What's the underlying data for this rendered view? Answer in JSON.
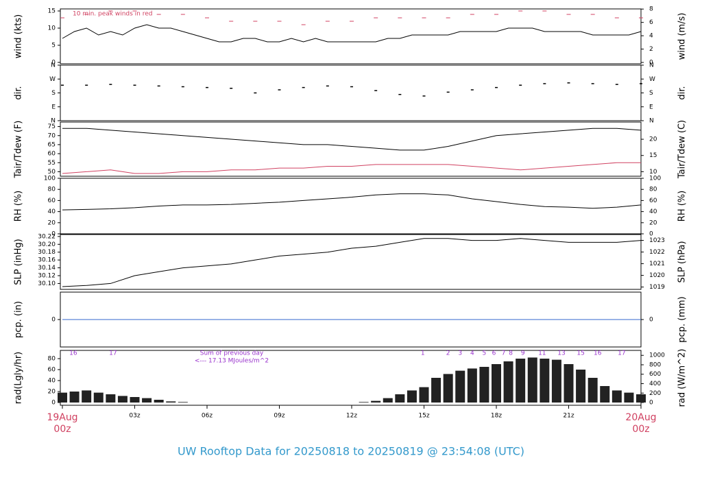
{
  "title": "UW Rooftop Data for 20250818  to  20250819 @ 23:54:08  (UTC)",
  "chart_data": [
    {
      "type": "line",
      "ylabel": "wind (kts)",
      "y2label": "wind (m/s)",
      "annotation": "10 min. peak winds in red",
      "xlim": [
        0,
        24
      ],
      "ylim": [
        -0.4,
        15.6
      ],
      "yticks": [
        0,
        5,
        10,
        15
      ],
      "y2lim": [
        -0.2,
        8.02
      ],
      "y2ticks": [
        0,
        2,
        4,
        6,
        8
      ],
      "series": [
        {
          "type": "line",
          "color": "#000000",
          "x": [
            0,
            0.5,
            1,
            1.5,
            2,
            2.5,
            3,
            3.5,
            4,
            4.5,
            5,
            5.5,
            6,
            6.5,
            7,
            7.5,
            8,
            8.5,
            9,
            9.5,
            10,
            10.5,
            11,
            11.5,
            12,
            12.5,
            13,
            13.5,
            14,
            14.5,
            15,
            15.5,
            16,
            16.5,
            17,
            17.5,
            18,
            18.5,
            19,
            19.5,
            20,
            20.5,
            21,
            21.5,
            22,
            22.5,
            23,
            23.5,
            24
          ],
          "values": [
            7,
            9,
            10,
            8,
            9,
            8,
            10,
            11,
            10,
            10,
            9,
            8,
            7,
            6,
            6,
            7,
            7,
            6,
            6,
            7,
            6,
            7,
            6,
            6,
            6,
            6,
            6,
            7,
            7,
            8,
            8,
            8,
            8,
            9,
            9,
            9,
            9,
            10,
            10,
            10,
            9,
            9,
            9,
            9,
            8,
            8,
            8,
            8,
            9
          ]
        },
        {
          "type": "dash",
          "color": "#d04060",
          "x": [
            0,
            1,
            2,
            3,
            4,
            5,
            6,
            7,
            8,
            9,
            10,
            11,
            12,
            13,
            14,
            15,
            16,
            17,
            18,
            19,
            20,
            21,
            22,
            23,
            24
          ],
          "values": [
            13,
            14,
            15,
            15,
            14,
            14,
            13,
            12,
            12,
            12,
            11,
            12,
            12,
            13,
            13,
            13,
            13,
            14,
            14,
            15,
            15,
            14,
            14,
            13,
            13
          ]
        }
      ]
    },
    {
      "type": "line",
      "ylabel": "dir.",
      "y2label": "dir.",
      "xlim": [
        0,
        24
      ],
      "ylim": [
        0,
        360
      ],
      "yticks": [
        {
          "value": 0,
          "label": "N"
        },
        {
          "value": 90,
          "label": "E"
        },
        {
          "value": 180,
          "label": "S"
        },
        {
          "value": 270,
          "label": "W"
        },
        {
          "value": 360,
          "label": "N"
        }
      ],
      "y2lim": [
        0,
        360
      ],
      "y2ticks": [
        {
          "value": 0,
          "label": "N"
        },
        {
          "value": 90,
          "label": "E"
        },
        {
          "value": 180,
          "label": "S"
        },
        {
          "value": 270,
          "label": "W"
        },
        {
          "value": 360,
          "label": "N"
        }
      ],
      "series": [
        {
          "type": "dots",
          "color": "#000000",
          "x": [
            0,
            1,
            2,
            3,
            4,
            5,
            6,
            7,
            8,
            9,
            10,
            11,
            12,
            13,
            14,
            15,
            16,
            17,
            18,
            19,
            20,
            21,
            22,
            23,
            24
          ],
          "values": [
            230,
            230,
            235,
            230,
            225,
            220,
            215,
            210,
            180,
            200,
            215,
            225,
            220,
            195,
            170,
            160,
            185,
            200,
            215,
            230,
            240,
            245,
            240,
            235,
            240
          ]
        }
      ]
    },
    {
      "type": "line",
      "ylabel": "Tair/Tdew (F)",
      "y2label": "Tair/Tdew (C)",
      "xlim": [
        0,
        24
      ],
      "ylim": [
        47.5,
        77.5
      ],
      "yticks": [
        50,
        55,
        60,
        65,
        70,
        75
      ],
      "y2lim": [
        8.6,
        25.3
      ],
      "y2ticks": [
        10,
        15,
        20
      ],
      "series": [
        {
          "type": "line",
          "color": "#000000",
          "x": [
            0,
            1,
            2,
            3,
            4,
            5,
            6,
            7,
            8,
            9,
            10,
            11,
            12,
            13,
            14,
            15,
            16,
            17,
            18,
            19,
            20,
            21,
            22,
            23,
            24
          ],
          "values": [
            74,
            74,
            73,
            72,
            71,
            70,
            69,
            68,
            67,
            66,
            65,
            65,
            64,
            63,
            62,
            62,
            64,
            67,
            70,
            71,
            72,
            73,
            74,
            74,
            73
          ]
        },
        {
          "type": "line",
          "color": "#d04060",
          "x": [
            0,
            1,
            2,
            3,
            4,
            5,
            6,
            7,
            8,
            9,
            10,
            11,
            12,
            13,
            14,
            15,
            16,
            17,
            18,
            19,
            20,
            21,
            22,
            23,
            24
          ],
          "values": [
            49,
            50,
            51,
            49,
            49,
            50,
            50,
            51,
            51,
            52,
            52,
            53,
            53,
            54,
            54,
            54,
            54,
            53,
            52,
            51,
            52,
            53,
            54,
            55,
            55
          ]
        }
      ]
    },
    {
      "type": "line",
      "ylabel": "RH (%)",
      "y2label": "RH (%)",
      "xlim": [
        0,
        24
      ],
      "ylim": [
        0,
        100
      ],
      "yticks": [
        0,
        20,
        40,
        60,
        80,
        100
      ],
      "y2lim": [
        0,
        100
      ],
      "y2ticks": [
        0,
        20,
        40,
        60,
        80,
        100
      ],
      "series": [
        {
          "type": "line",
          "color": "#000000",
          "x": [
            0,
            1,
            2,
            3,
            4,
            5,
            6,
            7,
            8,
            9,
            10,
            11,
            12,
            13,
            14,
            15,
            16,
            17,
            18,
            19,
            20,
            21,
            22,
            23,
            24
          ],
          "values": [
            43,
            44,
            45,
            47,
            50,
            52,
            52,
            53,
            55,
            57,
            60,
            63,
            66,
            70,
            72,
            72,
            70,
            63,
            58,
            53,
            49,
            48,
            46,
            48,
            52
          ]
        }
      ]
    },
    {
      "type": "line",
      "ylabel": "SLP (inHg)",
      "y2label": "SLP (hPa)",
      "xlim": [
        0,
        24
      ],
      "ylim": [
        30.085,
        30.225
      ],
      "yticks": [
        {
          "value": 30.1,
          "label": "30.10"
        },
        30.12,
        30.14,
        30.16,
        30.18,
        {
          "value": 30.2,
          "label": "30.20"
        },
        30.22
      ],
      "y2lim": [
        1018.8,
        1023.5
      ],
      "y2ticks": [
        1019,
        1020,
        1021,
        1022,
        1023
      ],
      "series": [
        {
          "type": "line",
          "color": "#000000",
          "x": [
            0,
            1,
            2,
            3,
            4,
            5,
            6,
            7,
            8,
            9,
            10,
            11,
            12,
            13,
            14,
            15,
            16,
            17,
            18,
            19,
            20,
            21,
            22,
            23,
            24
          ],
          "values": [
            30.092,
            30.095,
            30.1,
            30.12,
            30.13,
            30.14,
            30.145,
            30.15,
            30.16,
            30.17,
            30.175,
            30.18,
            30.19,
            30.195,
            30.205,
            30.215,
            30.215,
            30.21,
            30.21,
            30.215,
            30.21,
            30.205,
            30.205,
            30.205,
            30.21
          ]
        }
      ]
    },
    {
      "type": "line",
      "ylabel": "pcp. (in)",
      "y2label": "pcp. (mm)",
      "xlim": [
        0,
        24
      ],
      "ylim": [
        -1,
        1
      ],
      "yticks": [
        0
      ],
      "y2lim": [
        -1,
        1
      ],
      "y2ticks": [
        0
      ],
      "series": [
        {
          "type": "line",
          "color": "#3366cc",
          "x": [
            0,
            24
          ],
          "values": [
            0,
            0
          ]
        }
      ]
    },
    {
      "type": "bar",
      "ylabel": "rad(Lgly/hr)",
      "y2label": "rad (W/m^2)",
      "xlim": [
        0,
        24
      ],
      "ylim": [
        -5,
        95
      ],
      "yticks": [
        0,
        20,
        40,
        60,
        80
      ],
      "y2lim": [
        -58,
        1105
      ],
      "y2ticks": [
        0,
        200,
        400,
        600,
        800,
        1000
      ],
      "notes": [
        "Sum of previous day",
        "<--- 17.13 MJoules/m^2"
      ],
      "hour_labels": {
        "x": [
          0.45,
          2.1,
          14.95,
          16,
          16.5,
          17,
          17.5,
          17.9,
          18.3,
          18.6,
          19.1,
          19.9,
          20.7,
          21.5,
          22.2,
          23.2
        ],
        "labels": [
          "16",
          "17",
          "1",
          "2",
          "3",
          "4",
          "5",
          "6",
          "7",
          "8",
          "9",
          "11",
          "13",
          "15",
          "16",
          "17"
        ]
      },
      "xticks": [
        {
          "value": 0,
          "label": "19Aug"
        },
        {
          "value": 3,
          "label": "03z"
        },
        {
          "value": 6,
          "label": "06z"
        },
        {
          "value": 9,
          "label": "09z"
        },
        {
          "value": 12,
          "label": "12z"
        },
        {
          "value": 15,
          "label": "15z"
        },
        {
          "value": 18,
          "label": "18z"
        },
        {
          "value": 21,
          "label": "21z"
        },
        {
          "value": 24,
          "label": "20Aug"
        }
      ],
      "xtick_time_lines": [
        "00z",
        "00z"
      ],
      "series": [
        {
          "type": "bar",
          "color": "#222222",
          "x": [
            0,
            0.5,
            1,
            1.5,
            2,
            2.5,
            3,
            3.5,
            4,
            4.5,
            5,
            5.5,
            6,
            6.5,
            7,
            7.5,
            8,
            8.5,
            9,
            9.5,
            10,
            10.5,
            11,
            11.5,
            12,
            12.5,
            13,
            13.5,
            14,
            14.5,
            15,
            15.5,
            16,
            16.5,
            17,
            17.5,
            18,
            18.5,
            19,
            19.5,
            20,
            20.5,
            21,
            21.5,
            22,
            22.5,
            23,
            23.5,
            24
          ],
          "values": [
            18,
            20,
            22,
            18,
            15,
            12,
            10,
            8,
            5,
            2,
            1,
            0,
            0,
            0,
            0,
            0,
            0,
            0,
            0,
            0,
            0,
            0,
            0,
            0,
            0,
            1,
            3,
            8,
            15,
            22,
            28,
            45,
            52,
            58,
            62,
            65,
            70,
            75,
            80,
            82,
            80,
            78,
            70,
            60,
            45,
            30,
            22,
            18,
            15
          ]
        }
      ]
    }
  ]
}
